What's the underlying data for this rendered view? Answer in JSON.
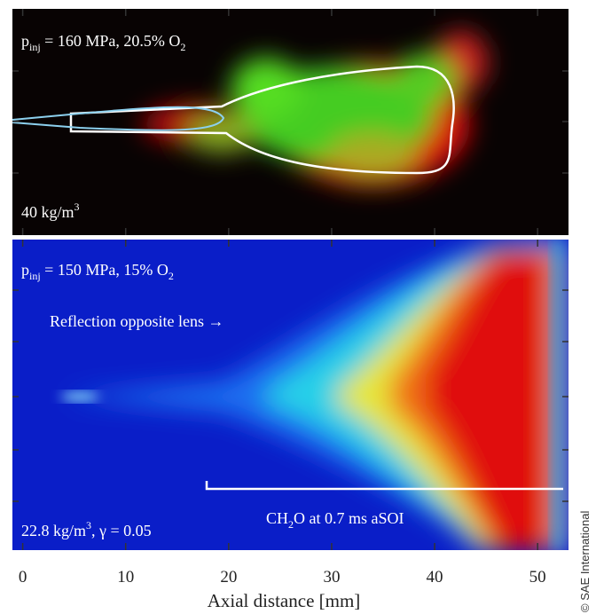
{
  "figure": {
    "panels": [
      {
        "annotation": [
          "p",
          "inj",
          " = 160 MPa, 20.5% O",
          "2"
        ],
        "density": [
          "40 kg/m",
          "3"
        ]
      },
      {
        "annotation": [
          "p",
          "inj",
          " = 150 MPa, 15% O",
          "2"
        ],
        "density": [
          "22.8 kg/m",
          "3",
          ", γ = 0.05"
        ],
        "note": "Reflection opposite lens →",
        "label": [
          "CH",
          "2",
          "O at 0.7 ms aSOI"
        ]
      }
    ],
    "x_axis": {
      "label": "Axial distance [mm]",
      "xlim": [
        -1,
        53
      ],
      "xticks": [
        0,
        10,
        20,
        30,
        40,
        50
      ]
    },
    "credit": "© SAE International"
  }
}
